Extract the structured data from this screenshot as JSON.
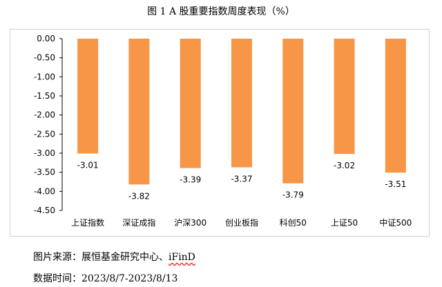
{
  "title": "图 1 A 股重要指数周度表现（%）",
  "source_label": "图片来源：",
  "source_main": "展恒基金研究中心、",
  "source_ifind": "iFinD",
  "period_label": "数据时间：",
  "period_value": "2023/8/7-2023/8/13",
  "colors": {
    "bar": "#F79646",
    "axis": "#000000",
    "frame": "#d0d0d0"
  },
  "chart_data": {
    "type": "bar",
    "title": "图 1 A 股重要指数周度表现（%）",
    "categories": [
      "上证指数",
      "深证成指",
      "沪深300",
      "创业板指",
      "科创50",
      "上证50",
      "中证500"
    ],
    "values": [
      -3.01,
      -3.82,
      -3.39,
      -3.37,
      -3.79,
      -3.02,
      -3.51
    ],
    "data_labels": [
      "-3.01",
      "-3.82",
      "-3.39",
      "-3.37",
      "-3.79",
      "-3.02",
      "-3.51"
    ],
    "yticks": [
      "0.00",
      "-0.50",
      "-1.00",
      "-1.50",
      "-2.00",
      "-2.50",
      "-3.00",
      "-3.50",
      "-4.00",
      "-4.50"
    ],
    "ylim": [
      -4.5,
      0
    ],
    "grid": false,
    "legend": "none"
  }
}
